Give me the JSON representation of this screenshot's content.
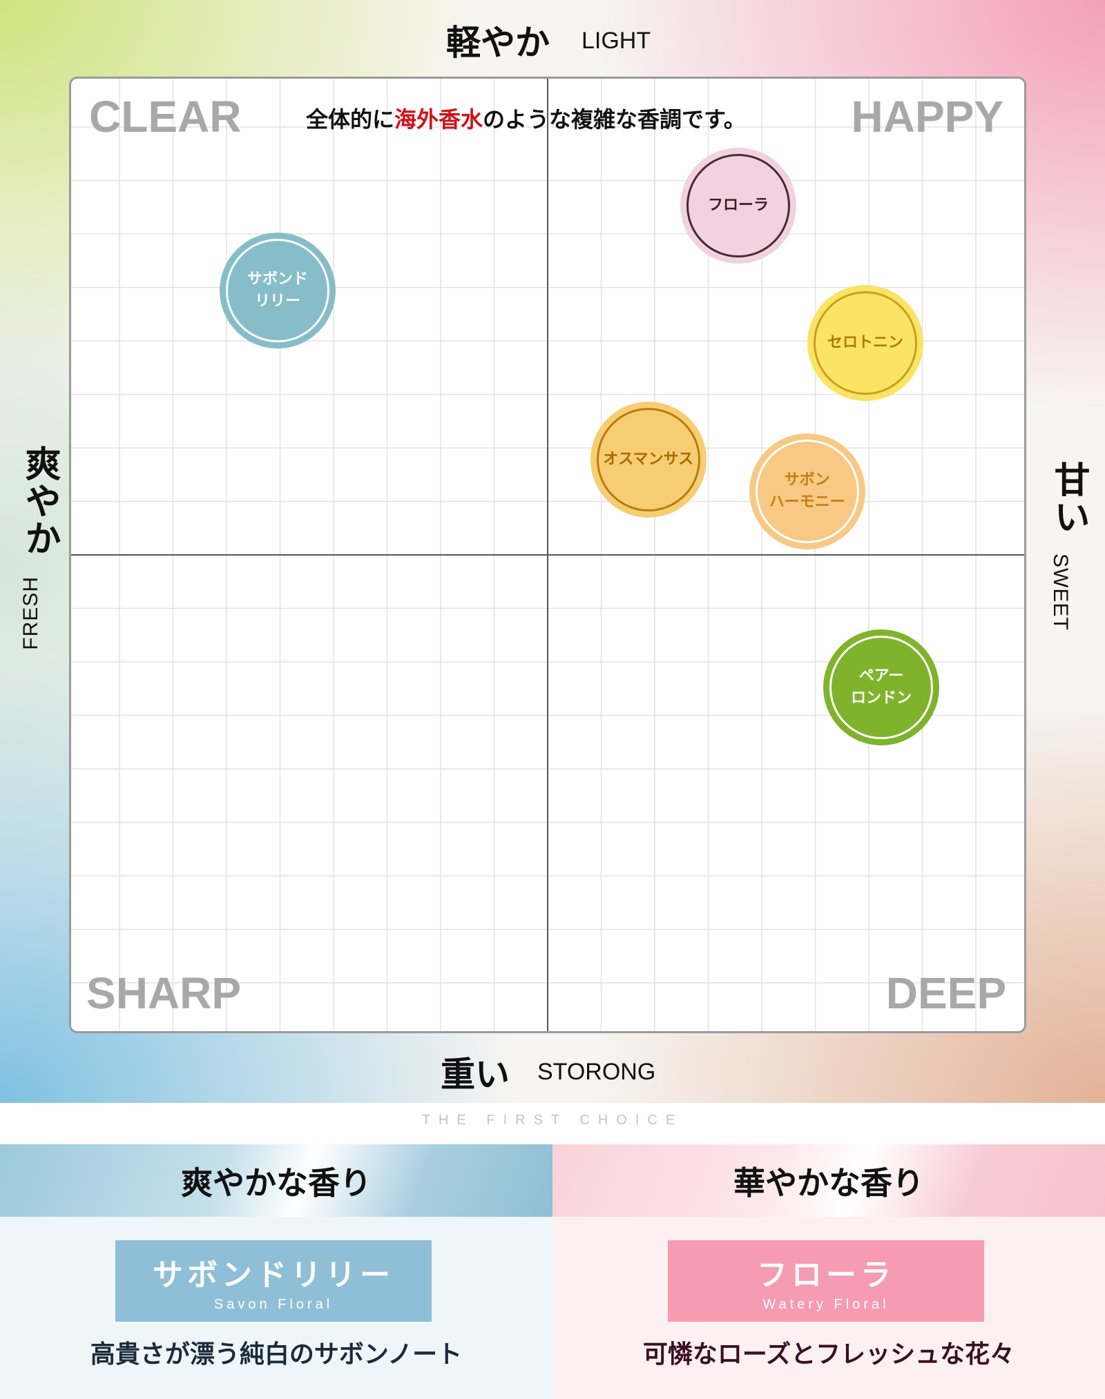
{
  "axes": {
    "top": {
      "jp": "軽やか",
      "en": "LIGHT"
    },
    "bottom": {
      "jp": "重い",
      "en": "STORONG"
    },
    "left": {
      "jp": "爽やか",
      "en": "FRESH"
    },
    "right": {
      "jp": "甘い",
      "en": "SWEET"
    }
  },
  "quadrants": {
    "top_left": "CLEAR",
    "top_right": "HAPPY",
    "bottom_left": "SHARP",
    "bottom_right": "DEEP"
  },
  "headline": {
    "before": "全体的に",
    "highlight": "海外香水",
    "after": "のような複雑な香調です。",
    "highlight_color": "#d0101a"
  },
  "chart_data": {
    "type": "scatter",
    "title": "",
    "xlabel": "爽やか FRESH ← → 甘い SWEET",
    "ylabel": "重い STORONG ← → 軽やか LIGHT",
    "xlim": [
      -9,
      9
    ],
    "ylim": [
      -9,
      9
    ],
    "grid": true,
    "points": [
      {
        "name": "サボンドリリー",
        "lines": [
          "サボンド",
          "リリー"
        ],
        "x": -5.1,
        "y": 5.0,
        "fill": "#86bdc8",
        "ring": "#ffffff",
        "text_color": "#ffffff"
      },
      {
        "name": "フローラ",
        "lines": [
          "フローラ"
        ],
        "x": 3.6,
        "y": 6.6,
        "fill": "#f0d2e0",
        "ring": "#4a2a30",
        "text_color": "#3a1f24"
      },
      {
        "name": "セロトニン",
        "lines": [
          "セロトニン"
        ],
        "x": 6.0,
        "y": 4.0,
        "fill": "#fbe364",
        "ring": "#c9a020",
        "text_color": "#b07a00"
      },
      {
        "name": "オスマンサス",
        "lines": [
          "オスマンサス"
        ],
        "x": 1.9,
        "y": 1.8,
        "fill": "#f6cd72",
        "ring": "#b67d0a",
        "text_color": "#a86b00"
      },
      {
        "name": "サボンハーモニー",
        "lines": [
          "サボン",
          "ハーモニー"
        ],
        "x": 4.9,
        "y": 1.2,
        "fill": "#f7c984",
        "ring": "#ffffff",
        "text_color": "#c77d10"
      },
      {
        "name": "ペアーロンドン",
        "lines": [
          "ペアー",
          "ロンドン"
        ],
        "x": 6.3,
        "y": -2.5,
        "fill": "#7fb32c",
        "ring": "#ffffff",
        "text_color": "#ffffff"
      }
    ]
  },
  "brand": "THE FIRST CHOICE",
  "columns": [
    {
      "heading": "爽やかな香り",
      "name": "サボンドリリー",
      "sub": "Savon Floral",
      "desc": "高貴さが漂う純白のサボンノート",
      "color": "#8fbfd6"
    },
    {
      "heading": "華やかな香り",
      "name": "フローラ",
      "sub": "Watery Floral",
      "desc": "可憐なローズとフレッシュな花々",
      "color": "#f59bb2"
    }
  ]
}
